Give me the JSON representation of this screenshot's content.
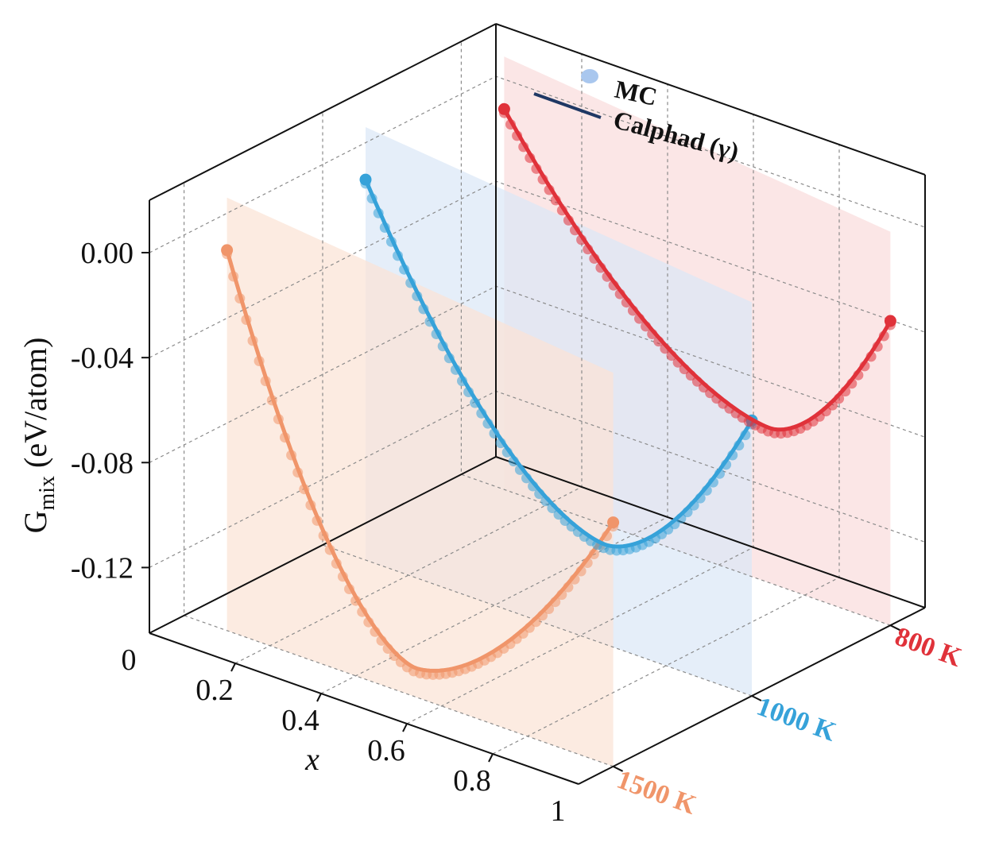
{
  "chart_data": {
    "type": "line",
    "projection": "3d",
    "xlabel": "x",
    "ylabel_main": "G",
    "ylabel_sub": "mix",
    "ylabel_unit": " (eV/atom)",
    "x_ticks": [
      "0",
      "0.2",
      "0.4",
      "0.6",
      "0.8",
      "1"
    ],
    "y_ticks": [
      "0.00",
      "-0.04",
      "-0.08",
      "-0.12"
    ],
    "ylim": [
      -0.145,
      0.02
    ],
    "xlim": [
      0,
      1
    ],
    "legend": {
      "mc_label": "MC",
      "calphad_label": "Calphad (γ)",
      "mc_color": "#a9c7ee",
      "calphad_color": "#1f3864"
    },
    "series": [
      {
        "name": "1500 K",
        "color": "#f0956a",
        "plane_color": "#fbe3d6",
        "x_range": [
          0.1,
          1.0
        ],
        "y_at_start": 0.0,
        "y_min": -0.134,
        "x_min": 0.54,
        "y_at_end": -0.052
      },
      {
        "name": "1000 K",
        "color": "#36a2d9",
        "plane_color": "#dbe8f7",
        "x_range": [
          0.1,
          1.0
        ],
        "y_at_start": 0.0,
        "y_min": -0.107,
        "x_min": 0.66,
        "y_at_end": -0.04
      },
      {
        "name": "800 K",
        "color": "#e0323a",
        "plane_color": "#f9dcdc",
        "x_range": [
          0.1,
          1.0
        ],
        "y_at_start": 0.0,
        "y_min": -0.086,
        "x_min": 0.72,
        "y_at_end": -0.029
      }
    ]
  }
}
